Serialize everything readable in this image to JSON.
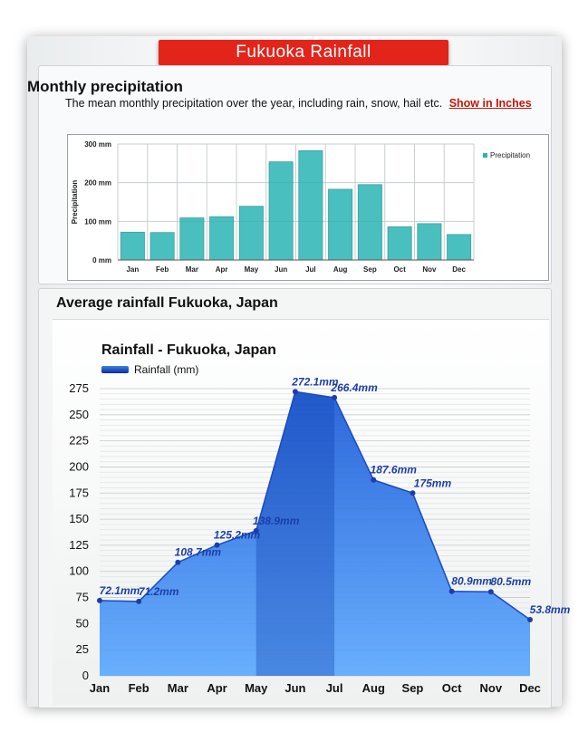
{
  "banner": {
    "title": "Fukuoka  Rainfall"
  },
  "section1": {
    "title": "Monthly precipitation",
    "description": "The mean monthly precipitation over the year, including rain, snow, hail etc.",
    "link_label": "Show in Inches"
  },
  "section2": {
    "title": "Average rainfall Fukuoka, Japan"
  },
  "colors": {
    "banner": "#e3241b",
    "bar": "#2bb4b4",
    "area": "#1d6fe0",
    "label": "#1c3ea8"
  },
  "chart_data": [
    {
      "type": "bar",
      "categories": [
        "Jan",
        "Feb",
        "Mar",
        "Apr",
        "May",
        "Jun",
        "Jul",
        "Aug",
        "Sep",
        "Oct",
        "Nov",
        "Dec"
      ],
      "series": [
        {
          "name": "Precipitation",
          "values": [
            72,
            71,
            109,
            112,
            139,
            254,
            283,
            183,
            195,
            86,
            94,
            66
          ]
        }
      ],
      "ylabel": "Precipitation",
      "yticks": [
        "0 mm",
        "100 mm",
        "200 mm",
        "300 mm"
      ],
      "ylim": [
        0,
        300
      ],
      "grid": true,
      "legend": "right"
    },
    {
      "type": "area",
      "title": "Rainfall - Fukuoka, Japan",
      "categories": [
        "Jan",
        "Feb",
        "Mar",
        "Apr",
        "May",
        "Jun",
        "Jul",
        "Aug",
        "Sep",
        "Oct",
        "Nov",
        "Dec"
      ],
      "series": [
        {
          "name": "Rainfall (mm)",
          "values": [
            72.1,
            71.2,
            108.7,
            125.2,
            138.9,
            272.1,
            266.4,
            187.6,
            175,
            80.9,
            80.5,
            53.8
          ]
        }
      ],
      "data_labels": [
        "72.1mm",
        "71.2mm",
        "108.7mm",
        "125.2mm",
        "138.9mm",
        "272.1mm",
        "266.4mm",
        "187.6mm",
        "175mm",
        "80.9mm",
        "80.5mm",
        "53.8mm"
      ],
      "yticks": [
        "0",
        "25",
        "50",
        "75",
        "100",
        "125",
        "150",
        "175",
        "200",
        "225",
        "250",
        "275"
      ],
      "ylim": [
        0,
        275
      ],
      "grid": true,
      "legend": "top-left"
    }
  ]
}
